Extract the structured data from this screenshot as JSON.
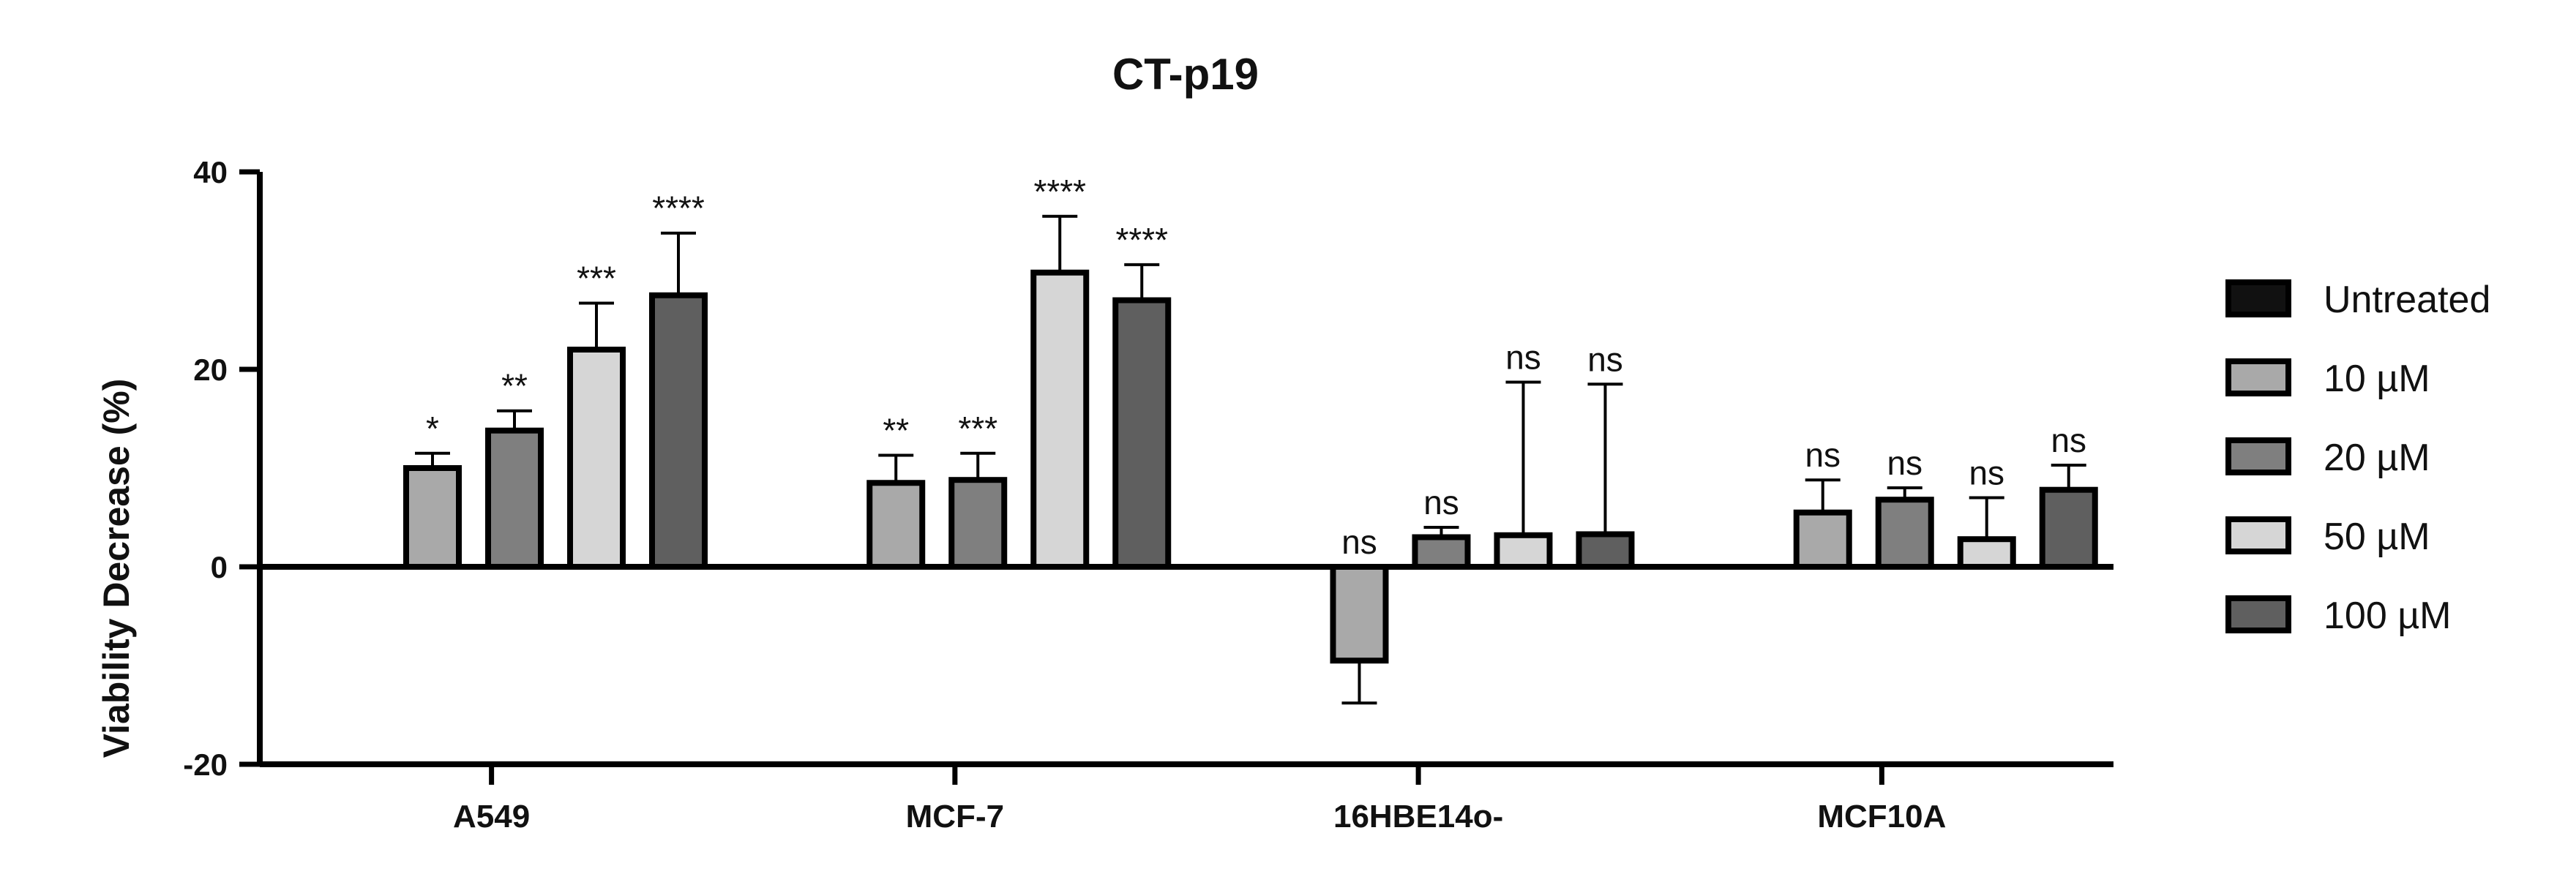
{
  "chart_data": {
    "type": "bar",
    "title": "CT-p19",
    "xlabel": "",
    "ylabel": "Viability Decrease (%)",
    "ylim": [
      -20,
      40
    ],
    "yticks": [
      -20,
      0,
      20,
      40
    ],
    "grid": false,
    "legend_position": "right",
    "categories": [
      "A549",
      "MCF-7",
      "16HBE14o-",
      "MCF10A"
    ],
    "series": [
      {
        "name": "Untreated",
        "color": "#111111",
        "values": [
          null,
          null,
          null,
          null
        ],
        "errors": [
          null,
          null,
          null,
          null
        ],
        "labels": [
          "",
          "",
          "",
          ""
        ]
      },
      {
        "name": "10 µM",
        "color": "#a9a9a9",
        "values": [
          10,
          8.5,
          -9.5,
          5.5
        ],
        "errors": [
          1.5,
          2.8,
          4.3,
          3.3
        ],
        "labels": [
          "*",
          "**",
          "ns",
          "ns"
        ]
      },
      {
        "name": "20 µM",
        "color": "#7f7f7f",
        "values": [
          13.8,
          8.8,
          3,
          6.8
        ],
        "errors": [
          2.0,
          2.7,
          1.0,
          1.2
        ],
        "labels": [
          "**",
          "***",
          "ns",
          "ns"
        ]
      },
      {
        "name": "50 µM",
        "color": "#d6d6d6",
        "values": [
          22,
          29.8,
          3.2,
          2.8
        ],
        "errors": [
          4.7,
          5.7,
          15.5,
          4.2
        ],
        "labels": [
          "***",
          "****",
          "ns",
          "ns"
        ]
      },
      {
        "name": "100 µM",
        "color": "#5f5f5f",
        "values": [
          27.5,
          27,
          3.3,
          7.8
        ],
        "errors": [
          6.3,
          3.6,
          15.2,
          2.5
        ],
        "labels": [
          "****",
          "****",
          "ns",
          "ns"
        ]
      }
    ]
  }
}
